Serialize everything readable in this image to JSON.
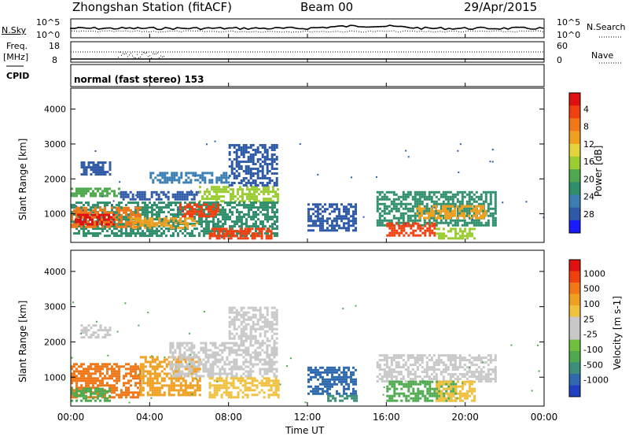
{
  "header": {
    "station_title": "Zhongshan Station (fitACF)",
    "beam": "Beam 00",
    "date": "29/Apr/2015"
  },
  "noise_panel": {
    "left_label": "N.Sky",
    "right_label": "N.Search",
    "left_ticks": [
      "10^5",
      "10^0"
    ],
    "right_ticks": [
      "10^5",
      "10^0"
    ]
  },
  "freq_panel": {
    "left_label_top": "Freq.",
    "left_label_bottom": "[MHz]",
    "left_ticks": [
      "18",
      "8"
    ],
    "right_ticks": [
      "60",
      "0"
    ],
    "right_label": "Nave"
  },
  "cpid": {
    "label": "CPID",
    "value": "normal (fast stereo) 153"
  },
  "chart_data": [
    {
      "type": "heatmap",
      "title": "",
      "ylabel": "Slant Range [km]",
      "xlabel": "",
      "x_ticks": [
        "00:00",
        "04:00",
        "08:00",
        "12:00",
        "16:00",
        "20:00",
        "00:00"
      ],
      "y_ticks": [
        "1000",
        "2000",
        "3000",
        "4000"
      ],
      "ylim": [
        180,
        4600
      ],
      "xlim_hours": [
        0,
        24
      ],
      "colorbar": {
        "label": "Power [dB]",
        "ticks": [
          "4",
          "8",
          "12",
          "16",
          "20",
          "24",
          "28"
        ],
        "colors": [
          "#1a1aff",
          "#2f5aa8",
          "#3a7fb4",
          "#2f8f6a",
          "#4faa4f",
          "#9acd32",
          "#e6d23a",
          "#f0a020",
          "#f07818",
          "#f04010",
          "#e01010"
        ]
      },
      "regions": [
        {
          "t0": 0.5,
          "t1": 2.0,
          "r0": 2100,
          "r1": 2500,
          "color": "#2f5aa8"
        },
        {
          "t0": 0.0,
          "t1": 2.5,
          "r0": 1500,
          "r1": 1750,
          "color": "#4faa4f"
        },
        {
          "t0": 2.5,
          "t1": 6.5,
          "r0": 1400,
          "r1": 1650,
          "color": "#2f5aa8"
        },
        {
          "t0": 6.5,
          "t1": 10.5,
          "r0": 1350,
          "r1": 1800,
          "color": "#9acd32"
        },
        {
          "t0": 0.0,
          "t1": 10.5,
          "r0": 400,
          "r1": 1350,
          "color": "#2f8f6a"
        },
        {
          "t0": 0.0,
          "t1": 3.5,
          "r0": 600,
          "r1": 1200,
          "color": "#f07818"
        },
        {
          "t0": 0.2,
          "t1": 2.2,
          "r0": 700,
          "r1": 1000,
          "color": "#e01010"
        },
        {
          "t0": 3.0,
          "t1": 6.5,
          "r0": 600,
          "r1": 900,
          "color": "#f0a020"
        },
        {
          "t0": 5.5,
          "t1": 7.5,
          "r0": 900,
          "r1": 1300,
          "color": "#f04010"
        },
        {
          "t0": 7.0,
          "t1": 10.2,
          "r0": 300,
          "r1": 600,
          "color": "#f04010"
        },
        {
          "t0": 8.0,
          "t1": 10.5,
          "r0": 1800,
          "r1": 3000,
          "color": "#2f5aa8"
        },
        {
          "t0": 4.0,
          "t1": 8.0,
          "r0": 1900,
          "r1": 2200,
          "color": "#3a7fb4"
        },
        {
          "t0": 12.0,
          "t1": 14.5,
          "r0": 500,
          "r1": 1300,
          "color": "#2f5aa8"
        },
        {
          "t0": 15.5,
          "t1": 21.5,
          "r0": 700,
          "r1": 1650,
          "color": "#2f8f6a"
        },
        {
          "t0": 17.5,
          "t1": 21.0,
          "r0": 900,
          "r1": 1250,
          "color": "#f0a020"
        },
        {
          "t0": 16.0,
          "t1": 18.5,
          "r0": 350,
          "r1": 750,
          "color": "#f04010"
        },
        {
          "t0": 18.5,
          "t1": 20.5,
          "r0": 300,
          "r1": 600,
          "color": "#9acd32"
        }
      ]
    },
    {
      "type": "heatmap",
      "title": "",
      "ylabel": "Slant Range [km]",
      "xlabel": "Time UT",
      "x_ticks": [
        "00:00",
        "04:00",
        "08:00",
        "12:00",
        "16:00",
        "20:00",
        "00:00"
      ],
      "y_ticks": [
        "1000",
        "2000",
        "3000",
        "4000"
      ],
      "ylim": [
        180,
        4600
      ],
      "xlim_hours": [
        0,
        24
      ],
      "colorbar": {
        "label": "Velocity [m s-1]",
        "ticks": [
          "1000",
          "500",
          "100",
          "25",
          "-25",
          "-100",
          "-500",
          "-1000"
        ],
        "colors": [
          "#2040c0",
          "#2f6ab0",
          "#3a8f7a",
          "#4faa4f",
          "#70c040",
          "#c8c8c8",
          "#c8c8c8",
          "#f0c040",
          "#f0a020",
          "#f07818",
          "#f04010",
          "#e01010"
        ]
      },
      "regions": [
        {
          "t0": 0.5,
          "t1": 2.0,
          "r0": 2100,
          "r1": 2500,
          "color": "#c8c8c8"
        },
        {
          "t0": 0.0,
          "t1": 3.5,
          "r0": 400,
          "r1": 1400,
          "color": "#f07818"
        },
        {
          "t0": 0.0,
          "t1": 2.0,
          "r0": 300,
          "r1": 700,
          "color": "#4faa4f"
        },
        {
          "t0": 3.5,
          "t1": 6.5,
          "r0": 500,
          "r1": 1600,
          "color": "#f0a020"
        },
        {
          "t0": 5.0,
          "t1": 10.5,
          "r0": 1000,
          "r1": 2000,
          "color": "#c8c8c8"
        },
        {
          "t0": 7.0,
          "t1": 10.5,
          "r0": 400,
          "r1": 1000,
          "color": "#f0c040"
        },
        {
          "t0": 8.0,
          "t1": 10.5,
          "r0": 2000,
          "r1": 3000,
          "color": "#c8c8c8"
        },
        {
          "t0": 12.0,
          "t1": 14.5,
          "r0": 500,
          "r1": 1300,
          "color": "#2f6ab0"
        },
        {
          "t0": 15.5,
          "t1": 21.5,
          "r0": 900,
          "r1": 1650,
          "color": "#c8c8c8"
        },
        {
          "t0": 16.0,
          "t1": 19.5,
          "r0": 300,
          "r1": 900,
          "color": "#4faa4f"
        },
        {
          "t0": 18.5,
          "t1": 20.5,
          "r0": 300,
          "r1": 900,
          "color": "#f0c040"
        },
        {
          "t0": 13.0,
          "t1": 14.5,
          "r0": 300,
          "r1": 500,
          "color": "#3a8f7a"
        }
      ]
    }
  ]
}
